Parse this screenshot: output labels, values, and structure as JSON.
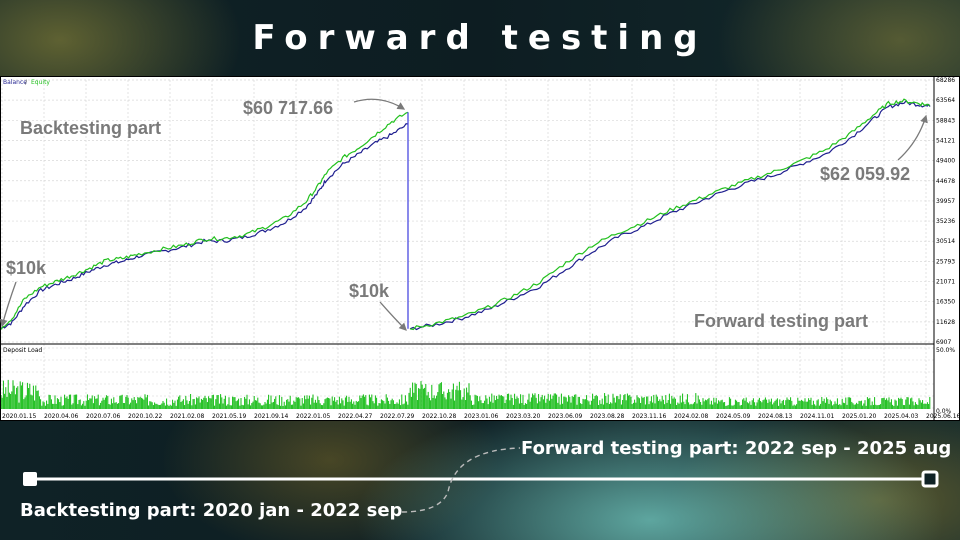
{
  "title": "Forward testing",
  "chart_data": {
    "type": "line",
    "legend": {
      "balance": "Balance",
      "separator": " / ",
      "equity": "Equity",
      "placement": "top-left"
    },
    "colors": {
      "balance": "#1f1f8f",
      "equity": "#22c01e",
      "jump": "#4a4ae0",
      "volume": "#11bb11"
    },
    "y_ticks": [
      68286,
      63564,
      58843,
      54121,
      49400,
      44678,
      39957,
      35236,
      30514,
      25793,
      21071,
      16350,
      11628,
      6907
    ],
    "ylim": [
      6907,
      68286
    ],
    "x_ticks": [
      "2020.01.15",
      "2020.04.06",
      "2020.07.06",
      "2020.10.22",
      "2021.02.08",
      "2021.05.19",
      "2021.09.14",
      "2022.01.05",
      "2022.04.27",
      "2022.07.29",
      "2022.10.28",
      "2023.01.06",
      "2023.03.20",
      "2023.06.09",
      "2023.08.28",
      "2023.11.16",
      "2024.02.08",
      "2024.05.09",
      "2024.08.13",
      "2024.11.01",
      "2025.01.20",
      "2025.04.03",
      "2025.06.16"
    ],
    "grid": true,
    "series": [
      {
        "name": "Balance",
        "segments": [
          [
            [
              0,
              10000
            ],
            [
              0.03,
              11500
            ],
            [
              0.06,
              15500
            ],
            [
              0.1,
              19000
            ],
            [
              0.14,
              20500
            ],
            [
              0.18,
              21800
            ],
            [
              0.22,
              23500
            ],
            [
              0.26,
              25000
            ],
            [
              0.3,
              25800
            ],
            [
              0.34,
              27000
            ],
            [
              0.4,
              28200
            ],
            [
              0.45,
              29200
            ],
            [
              0.5,
              30500
            ],
            [
              0.55,
              30600
            ],
            [
              0.6,
              31500
            ],
            [
              0.65,
              33000
            ],
            [
              0.7,
              35000
            ],
            [
              0.75,
              38500
            ],
            [
              0.78,
              42000
            ],
            [
              0.8,
              45000
            ],
            [
              0.84,
              48500
            ],
            [
              0.88,
              51000
            ],
            [
              0.92,
              53500
            ],
            [
              0.96,
              55500
            ],
            [
              1.0,
              58000
            ]
          ],
          [
            [
              0,
              10000
            ],
            [
              0.05,
              11000
            ],
            [
              0.1,
              12500
            ],
            [
              0.15,
              14500
            ],
            [
              0.2,
              17200
            ],
            [
              0.25,
              20000
            ],
            [
              0.3,
              24000
            ],
            [
              0.35,
              28000
            ],
            [
              0.4,
              31500
            ],
            [
              0.45,
              34000
            ],
            [
              0.5,
              37000
            ],
            [
              0.55,
              39500
            ],
            [
              0.6,
              42000
            ],
            [
              0.65,
              44200
            ],
            [
              0.7,
              46000
            ],
            [
              0.75,
              48500
            ],
            [
              0.8,
              51000
            ],
            [
              0.85,
              55000
            ],
            [
              0.89,
              59000
            ],
            [
              0.92,
              62000
            ],
            [
              0.95,
              63000
            ],
            [
              0.98,
              62500
            ],
            [
              1.0,
              62059.92
            ]
          ]
        ]
      },
      {
        "name": "Equity",
        "segments": [
          [
            [
              0,
              10000
            ],
            [
              0.03,
              12500
            ],
            [
              0.06,
              17000
            ],
            [
              0.1,
              19800
            ],
            [
              0.14,
              21200
            ],
            [
              0.18,
              22600
            ],
            [
              0.22,
              24200
            ],
            [
              0.26,
              26000
            ],
            [
              0.3,
              26500
            ],
            [
              0.34,
              27500
            ],
            [
              0.4,
              28700
            ],
            [
              0.45,
              29600
            ],
            [
              0.5,
              31000
            ],
            [
              0.55,
              31200
            ],
            [
              0.6,
              32000
            ],
            [
              0.65,
              33800
            ],
            [
              0.7,
              36000
            ],
            [
              0.75,
              39800
            ],
            [
              0.78,
              43500
            ],
            [
              0.8,
              46500
            ],
            [
              0.84,
              50000
            ],
            [
              0.88,
              52500
            ],
            [
              0.92,
              55500
            ],
            [
              0.96,
              58500
            ],
            [
              1.0,
              60717.66
            ]
          ],
          [
            [
              0,
              10000
            ],
            [
              0.05,
              11300
            ],
            [
              0.1,
              12800
            ],
            [
              0.15,
              15000
            ],
            [
              0.2,
              17800
            ],
            [
              0.25,
              21000
            ],
            [
              0.3,
              25500
            ],
            [
              0.35,
              29500
            ],
            [
              0.4,
              32500
            ],
            [
              0.45,
              35000
            ],
            [
              0.5,
              37800
            ],
            [
              0.55,
              40200
            ],
            [
              0.6,
              42600
            ],
            [
              0.65,
              44800
            ],
            [
              0.7,
              46800
            ],
            [
              0.75,
              49200
            ],
            [
              0.8,
              52000
            ],
            [
              0.85,
              56000
            ],
            [
              0.89,
              60000
            ],
            [
              0.92,
              62800
            ],
            [
              0.95,
              63400
            ],
            [
              0.98,
              62800
            ],
            [
              1.0,
              62300
            ]
          ]
        ]
      }
    ],
    "deposit_load": {
      "label": "Deposit Load",
      "ticks": [
        "50.0%",
        "0.0%"
      ]
    },
    "annotations": {
      "peak": "$60 717.66",
      "final": "$62 059.92",
      "start1": "$10k",
      "start2": "$10k",
      "backtest_part": "Backtesting part",
      "forward_part": "Forward testing part"
    }
  },
  "timeline": {
    "forward_label": "Forward testing part: 2022 sep - 2025 aug",
    "backtest_label": "Backtesting part: 2020 jan - 2022 sep"
  }
}
